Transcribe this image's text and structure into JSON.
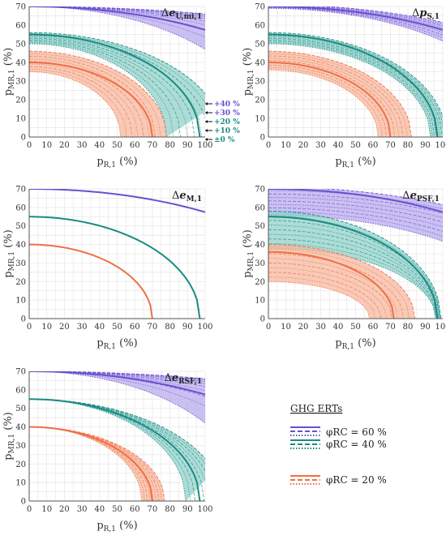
{
  "annotations": {
    "arrow_labels": [
      "+40 %",
      "+30 %",
      "+20 %",
      "+10 %",
      "±0 %"
    ]
  },
  "legend": {
    "title": "GHG ERTs",
    "entries": [
      {
        "label": "φRC = 60 %",
        "color": "#6a4fd0"
      },
      {
        "label": "φRC = 40 %",
        "color": "#1b8b82"
      },
      {
        "label": "φRC = 20 %",
        "color": "#ef7046"
      }
    ]
  },
  "colors": {
    "phi60": "#6a4fd0",
    "phi60_fill": "#b3a6ec",
    "phi40": "#1b8b82",
    "phi40_fill": "#8ccfc8",
    "phi20": "#ef7046",
    "phi20_fill": "#f7b498",
    "grid": "#e6e6e6"
  },
  "chart_data": [
    {
      "type": "line",
      "title": "Δe_U,mi,1",
      "xlabel": "p_R,1 (%)",
      "ylabel": "p_MR,1 (%)",
      "xlim": [
        0,
        100
      ],
      "ylim": [
        0,
        70
      ],
      "xticks": [
        0,
        10,
        20,
        30,
        40,
        50,
        60,
        70,
        80,
        90,
        100
      ],
      "yticks": [
        0,
        10,
        20,
        30,
        40,
        50,
        60,
        70
      ],
      "grid": true,
      "series": [
        {
          "name": "φRC = 60 %",
          "base_y0": 70,
          "base_x_intercept": 175,
          "band_y0": [
            70,
            70
          ],
          "band_x_intercept": [
            135,
            300
          ]
        },
        {
          "name": "φRC = 40 %",
          "base_y0": 55,
          "base_x_intercept": 97,
          "band_y0": [
            50,
            56
          ],
          "band_x_intercept": [
            78,
            110
          ]
        },
        {
          "name": "φRC = 20 %",
          "base_y0": 40,
          "base_x_intercept": 70,
          "band_y0": [
            35,
            46
          ],
          "band_x_intercept": [
            52,
            78
          ]
        }
      ]
    },
    {
      "type": "line",
      "title": "Δp_S,1",
      "xlabel": "p_R,1 (%)",
      "ylabel": "p_MR,1 (%)",
      "xlim": [
        0,
        100
      ],
      "ylim": [
        0,
        70
      ],
      "xticks": [
        0,
        10,
        20,
        30,
        40,
        50,
        60,
        70,
        80,
        90,
        100
      ],
      "yticks": [
        0,
        10,
        20,
        30,
        40,
        50,
        60,
        70
      ],
      "grid": true,
      "series": [
        {
          "name": "φRC = 60 %",
          "base_y0": 70,
          "base_x_intercept": 175,
          "band_y0": [
            69,
            71
          ],
          "band_x_intercept": [
            150,
            200
          ]
        },
        {
          "name": "φRC = 40 %",
          "base_y0": 55,
          "base_x_intercept": 97,
          "band_y0": [
            50,
            56
          ],
          "band_x_intercept": [
            93,
            102
          ]
        },
        {
          "name": "φRC = 20 %",
          "base_y0": 40,
          "base_x_intercept": 70,
          "band_y0": [
            36,
            46
          ],
          "band_x_intercept": [
            63,
            82
          ]
        }
      ]
    },
    {
      "type": "line",
      "title": "Δe_M,1",
      "xlabel": "p_R,1 (%)",
      "ylabel": "p_MR,1 (%)",
      "xlim": [
        0,
        100
      ],
      "ylim": [
        0,
        70
      ],
      "xticks": [
        0,
        10,
        20,
        30,
        40,
        50,
        60,
        70,
        80,
        90,
        100
      ],
      "yticks": [
        0,
        10,
        20,
        30,
        40,
        50,
        60,
        70
      ],
      "grid": true,
      "series": [
        {
          "name": "φRC = 60 %",
          "base_y0": 70,
          "base_x_intercept": 175,
          "band_y0": [
            70,
            70
          ],
          "band_x_intercept": [
            175,
            175
          ]
        },
        {
          "name": "φRC = 40 %",
          "base_y0": 55,
          "base_x_intercept": 97,
          "band_y0": [
            55,
            55
          ],
          "band_x_intercept": [
            97,
            97
          ]
        },
        {
          "name": "φRC = 20 %",
          "base_y0": 40,
          "base_x_intercept": 70,
          "band_y0": [
            40,
            40
          ],
          "band_x_intercept": [
            70,
            70
          ]
        }
      ]
    },
    {
      "type": "line",
      "title": "Δe_PSF,1",
      "xlabel": "p_R,1 (%)",
      "ylabel": "p_MR,1 (%)",
      "xlim": [
        0,
        100
      ],
      "ylim": [
        0,
        70
      ],
      "xticks": [
        0,
        10,
        20,
        30,
        40,
        50,
        60,
        70,
        80,
        90,
        100
      ],
      "yticks": [
        0,
        10,
        20,
        30,
        40,
        50,
        60,
        70
      ],
      "grid": true,
      "series": [
        {
          "name": "φRC = 60 %",
          "base_y0": 70,
          "base_x_intercept": 175,
          "band_y0": [
            56,
            71
          ],
          "band_x_intercept": [
            150,
            200
          ]
        },
        {
          "name": "φRC = 40 %",
          "base_y0": 55,
          "base_x_intercept": 97,
          "band_y0": [
            38,
            58
          ],
          "band_x_intercept": [
            96,
            99
          ]
        },
        {
          "name": "φRC = 20 %",
          "base_y0": 36,
          "base_x_intercept": 72,
          "band_y0": [
            20,
            40
          ],
          "band_x_intercept": [
            58,
            84
          ]
        }
      ]
    },
    {
      "type": "line",
      "title": "Δe_RSF,1",
      "xlabel": "p_R,1 (%)",
      "ylabel": "p_MR,1 (%)",
      "xlim": [
        0,
        100
      ],
      "ylim": [
        0,
        70
      ],
      "xticks": [
        0,
        10,
        20,
        30,
        40,
        50,
        60,
        70,
        80,
        90,
        100
      ],
      "yticks": [
        0,
        10,
        20,
        30,
        40,
        50,
        60,
        70
      ],
      "grid": true,
      "series": [
        {
          "name": "φRC = 60 %",
          "base_y0": 70,
          "base_x_intercept": 175,
          "band_y0": [
            70,
            70
          ],
          "band_x_intercept": [
            125,
            300
          ]
        },
        {
          "name": "φRC = 40 %",
          "base_y0": 55,
          "base_x_intercept": 97,
          "band_y0": [
            55,
            55
          ],
          "band_x_intercept": [
            89,
            110
          ]
        },
        {
          "name": "φRC = 20 %",
          "base_y0": 40,
          "base_x_intercept": 70,
          "band_y0": [
            40,
            40
          ],
          "band_x_intercept": [
            64,
            77
          ]
        }
      ]
    }
  ]
}
